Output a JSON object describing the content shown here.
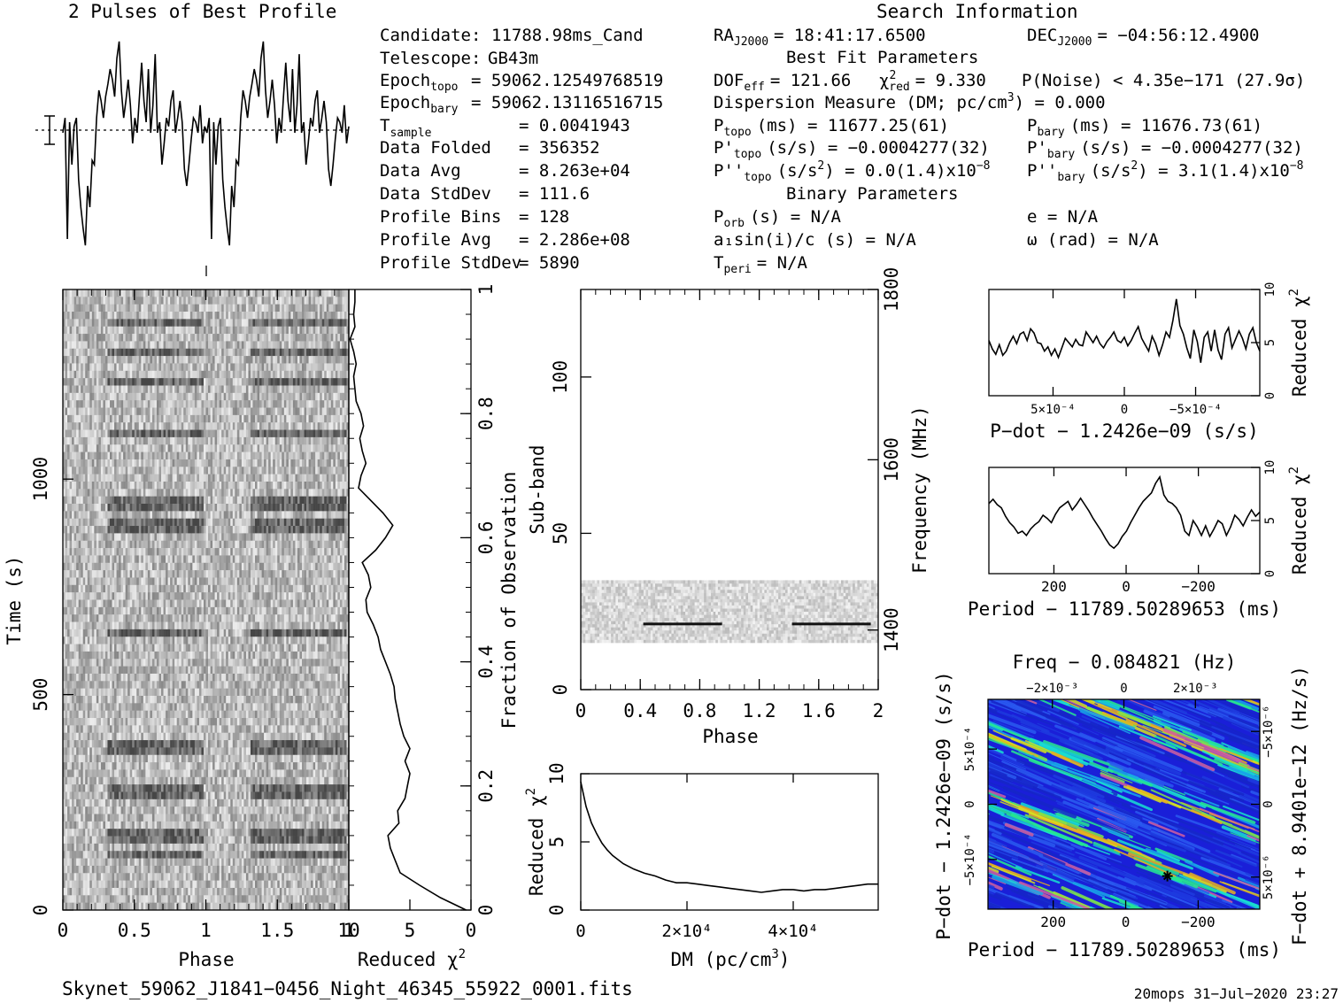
{
  "title": "2 Pulses of Best Profile",
  "search_info_title": "Search Information",
  "info_col1": [
    {
      "label": "Candidate:",
      "value": "11788.98ms_Cand"
    },
    {
      "label": "Telescope:",
      "value": "GB43m"
    },
    {
      "label": "Epoch",
      "sub": "topo",
      "value": "= 59062.12549768519"
    },
    {
      "label": "Epoch",
      "sub": "bary",
      "value": "= 59062.13116516715"
    },
    {
      "label": "T",
      "sub": "sample",
      "value": "=  0.0041943"
    },
    {
      "label": "Data Folded",
      "value": "=  356352"
    },
    {
      "label": "Data Avg",
      "value": "=  8.263e+04"
    },
    {
      "label": "Data StdDev",
      "value": "=  111.6"
    },
    {
      "label": "Profile Bins",
      "value": "=  128"
    },
    {
      "label": "Profile Avg",
      "value": "=  2.286e+08"
    },
    {
      "label": "Profile StdDev",
      "value": "=  5890"
    }
  ],
  "info_col2": {
    "ra": "= 18:41:17.6500",
    "dec": "= −04:56:12.4900",
    "best_fit_title": "Best Fit Parameters",
    "dof": "= 121.66",
    "chi2red": "= 9.330",
    "pnoise": "P(Noise) < 4.35e−171  (27.9σ)",
    "dm_line": "Dispersion Measure (DM; pc/cm",
    "dm_value": ") = 0.000",
    "ptopo": "(ms) =  11677.25(61)",
    "pbary": "(ms) =  11676.73(61)",
    "pdtopo": "(s/s) = −0.0004277(32)",
    "pdbary": "(s/s) = −0.0004277(32)",
    "pddtopo": "= 0.0(1.4)x10",
    "pddbary": "=  3.1(1.4)x10",
    "binary_title": "Binary Parameters",
    "porb": "(s) = N/A",
    "a1sini": "a₁sin(i)/c (s) = N/A",
    "tperi": "= N/A",
    "ecc": "e = N/A",
    "omega": "ω (rad) = N/A"
  },
  "footer_left": "Skynet_59062_J1841−0456_Night_46345_55922_0001.fits",
  "footer_right": "20mops 31−Jul−2020 23:27",
  "colors": {
    "ink": "#000000",
    "greyscale_dark": "#1a1a1a",
    "map_low": "#1a1fd8",
    "map_mid": "#18e0d0",
    "map_high": "#e8e020"
  },
  "chart_data": [
    {
      "id": "pulse_profile",
      "type": "line",
      "title": "2 Pulses of Best Profile",
      "x_range": [
        0,
        2
      ],
      "y": [
        0.55,
        0.62,
        0.05,
        0.6,
        0.4,
        0.58,
        0.62,
        0.33,
        0.2,
        0.1,
        0.02,
        0.3,
        0.2,
        0.42,
        0.4,
        0.62,
        0.75,
        0.7,
        0.62,
        0.72,
        0.78,
        0.85,
        0.8,
        0.72,
        0.9,
        0.98,
        0.75,
        0.62,
        0.7,
        0.8,
        0.68,
        0.5,
        0.62,
        0.55,
        0.72,
        0.88,
        0.7,
        0.6,
        0.85,
        0.55,
        0.68,
        0.92,
        0.55,
        0.6,
        0.4,
        0.5,
        0.62,
        0.58,
        0.7,
        0.75,
        0.55,
        0.62,
        0.7,
        0.6,
        0.38,
        0.3,
        0.4,
        0.52,
        0.62,
        0.6,
        0.55,
        0.68,
        0.5,
        0.58,
        0.55,
        0.62,
        0.05,
        0.6,
        0.4,
        0.58,
        0.62,
        0.33,
        0.2,
        0.1,
        0.02,
        0.3,
        0.2,
        0.42,
        0.4,
        0.62,
        0.75,
        0.7,
        0.62,
        0.72,
        0.78,
        0.85,
        0.8,
        0.72,
        0.9,
        0.98,
        0.75,
        0.62,
        0.7,
        0.8,
        0.68,
        0.5,
        0.62,
        0.55,
        0.72,
        0.88,
        0.7,
        0.6,
        0.85,
        0.55,
        0.68,
        0.92,
        0.55,
        0.6,
        0.4,
        0.5,
        0.62,
        0.58,
        0.7,
        0.75,
        0.55,
        0.62,
        0.7,
        0.6,
        0.38,
        0.3,
        0.4,
        0.52,
        0.62,
        0.6,
        0.55,
        0.68,
        0.5,
        0.58
      ]
    },
    {
      "id": "time_phase",
      "type": "heatmap",
      "xlabel": "Phase",
      "ylabel": "Time (s)",
      "x_ticks": [
        "0",
        "0.5",
        "1",
        "1.5"
      ],
      "x_tick_values": [
        0,
        0.5,
        1,
        1.5
      ],
      "y_ticks": [
        "0",
        "500",
        "1000"
      ],
      "y_tick_values": [
        0,
        500,
        1000
      ],
      "x_range": [
        0,
        2
      ],
      "y_range": [
        0,
        1440
      ],
      "dark_rows_fraction": [
        0.09,
        0.12,
        0.19,
        0.26,
        0.45,
        0.62,
        0.655,
        0.66,
        0.77,
        0.85,
        0.9,
        0.95
      ]
    },
    {
      "id": "time_chi2",
      "type": "line",
      "xlabel": "Reduced χ²",
      "ylabel": "Fraction of Observation",
      "x_ticks": [
        "10",
        "5",
        "0"
      ],
      "x_tick_values": [
        10,
        5,
        0
      ],
      "y_ticks": [
        "0",
        "0.2",
        "0.4",
        "0.6",
        "0.8",
        "1"
      ],
      "y_tick_values": [
        0,
        0.2,
        0.4,
        0.6,
        0.8,
        1
      ],
      "frac": [
        0,
        0.02,
        0.04,
        0.06,
        0.08,
        0.1,
        0.12,
        0.14,
        0.16,
        0.18,
        0.2,
        0.22,
        0.24,
        0.26,
        0.28,
        0.3,
        0.32,
        0.34,
        0.36,
        0.38,
        0.4,
        0.42,
        0.44,
        0.46,
        0.48,
        0.5,
        0.52,
        0.54,
        0.56,
        0.58,
        0.6,
        0.62,
        0.64,
        0.66,
        0.68,
        0.7,
        0.72,
        0.74,
        0.76,
        0.78,
        0.8,
        0.82,
        0.84,
        0.86,
        0.88,
        0.9,
        0.92,
        0.94,
        0.96,
        0.98,
        1
      ],
      "chi2": [
        0.4,
        2.5,
        4.2,
        5.8,
        6.2,
        6.6,
        6.8,
        5.9,
        6.0,
        5.4,
        5.2,
        5.0,
        5.4,
        5.0,
        5.5,
        5.8,
        6.0,
        6.2,
        6.3,
        6.6,
        7.0,
        7.4,
        7.6,
        8.0,
        8.5,
        8.6,
        8.2,
        8.4,
        8.9,
        7.8,
        7.0,
        6.4,
        7.2,
        8.2,
        9.2,
        9.0,
        8.6,
        8.9,
        9.1,
        8.8,
        9.0,
        9.4,
        9.5,
        9.6,
        9.4,
        9.6,
        9.9,
        9.5,
        9.6,
        9.5,
        9.5
      ]
    },
    {
      "id": "subband_phase",
      "type": "heatmap",
      "xlabel": "Phase",
      "ylabel": "Sub-band",
      "y2label": "Frequency (MHz)",
      "x_ticks": [
        "0",
        "0.4",
        "0.8",
        "1.2",
        "1.6",
        "2"
      ],
      "x_tick_values": [
        0,
        0.4,
        0.8,
        1.2,
        1.6,
        2
      ],
      "y_ticks": [
        "0",
        "50",
        "100"
      ],
      "y_tick_values": [
        0,
        50,
        100
      ],
      "y2_ticks": [
        "1400",
        "1600",
        "1800"
      ],
      "y2_tick_values": [
        1400,
        1600,
        1800
      ],
      "y_range": [
        0,
        128
      ],
      "y2_range": [
        1330,
        1800
      ],
      "band_range": [
        15,
        35
      ],
      "bright_line": {
        "subband": 21,
        "phase_ranges": [
          [
            0.42,
            0.95
          ],
          [
            1.42,
            1.95
          ]
        ]
      }
    },
    {
      "id": "dm_chi2",
      "type": "line",
      "xlabel": "DM (pc/cm³)",
      "ylabel": "Reduced χ²",
      "x_ticks": [
        "0",
        "2×10⁴",
        "4×10⁴"
      ],
      "x_tick_values": [
        0,
        20000,
        40000
      ],
      "y_ticks": [
        "0",
        "5",
        "10"
      ],
      "y_tick_values": [
        0,
        5,
        10
      ],
      "x_range": [
        0,
        56000
      ],
      "y_range": [
        0,
        10
      ],
      "x": [
        0,
        1000,
        2000,
        3000,
        4000,
        5000,
        6000,
        7000,
        8000,
        9000,
        10000,
        12000,
        14000,
        16000,
        18000,
        20000,
        22000,
        24000,
        26000,
        28000,
        30000,
        32000,
        34000,
        36000,
        38000,
        40000,
        42000,
        44000,
        46000,
        48000,
        50000,
        52000,
        54000,
        56000
      ],
      "y": [
        9.4,
        7.6,
        6.4,
        5.6,
        4.9,
        4.4,
        4.0,
        3.7,
        3.4,
        3.2,
        3.0,
        2.7,
        2.5,
        2.2,
        2.0,
        2.0,
        1.9,
        1.8,
        1.7,
        1.6,
        1.5,
        1.4,
        1.3,
        1.4,
        1.5,
        1.5,
        1.4,
        1.5,
        1.5,
        1.6,
        1.7,
        1.8,
        1.9,
        1.9
      ]
    },
    {
      "id": "pdot_chi2",
      "type": "line",
      "xlabel": "P−dot − 1.2426e−09 (s/s)",
      "ylabel": "Reduced χ²",
      "x_ticks": [
        "5×10⁻⁴",
        "0",
        "−5×10⁻⁴"
      ],
      "x_tick_values": [
        0.0005,
        0,
        -0.0005
      ],
      "y_ticks": [
        "0",
        "5",
        "10"
      ],
      "y_tick_values": [
        0,
        5,
        10
      ],
      "x_range": [
        0.00095,
        -0.00095
      ],
      "y_range": [
        0,
        10
      ],
      "y": [
        5.2,
        4.4,
        3.9,
        4.8,
        3.8,
        4.2,
        5.0,
        5.6,
        4.9,
        5.8,
        6.0,
        5.2,
        6.3,
        5.9,
        5.0,
        4.9,
        4.2,
        4.6,
        3.8,
        4.4,
        3.6,
        4.5,
        5.4,
        5.0,
        4.6,
        5.3,
        4.8,
        4.7,
        6.0,
        5.5,
        5.0,
        5.6,
        4.9,
        4.5,
        5.1,
        5.5,
        6.0,
        5.2,
        5.0,
        5.5,
        4.7,
        5.2,
        5.9,
        6.5,
        5.4,
        4.8,
        4.2,
        5.6,
        4.9,
        3.8,
        4.8,
        6.0,
        5.5,
        7.1,
        9.1,
        6.6,
        5.8,
        4.5,
        3.5,
        6.2,
        5.1,
        3.1,
        5.5,
        6.0,
        4.2,
        6.2,
        4.3,
        3.4,
        5.8,
        6.4,
        4.5,
        5.3,
        6.1,
        5.4,
        4.4,
        5.8,
        6.4,
        5.0,
        4.2
      ]
    },
    {
      "id": "period_chi2",
      "type": "line",
      "xlabel": "Period − 11789.50289653 (ms)",
      "ylabel": "Reduced χ²",
      "x_ticks": [
        "200",
        "0",
        "−200"
      ],
      "x_tick_values": [
        200,
        0,
        -200
      ],
      "y_ticks": [
        "0",
        "5",
        "10"
      ],
      "y_tick_values": [
        0,
        5,
        10
      ],
      "x_range": [
        380,
        -370
      ],
      "y_range": [
        0,
        10
      ],
      "y": [
        6.6,
        7.0,
        6.5,
        6.2,
        5.4,
        4.8,
        4.4,
        3.8,
        4.0,
        3.6,
        4.2,
        4.6,
        4.9,
        5.5,
        5.2,
        4.8,
        5.6,
        6.2,
        6.5,
        6.8,
        6.0,
        6.5,
        7.1,
        6.5,
        5.9,
        5.2,
        4.6,
        4.0,
        3.3,
        2.7,
        2.4,
        2.8,
        3.5,
        4.0,
        4.8,
        5.5,
        6.2,
        6.8,
        7.2,
        7.6,
        8.5,
        9.1,
        7.4,
        6.8,
        6.6,
        6.2,
        5.5,
        4.0,
        3.6,
        5.0,
        4.4,
        3.6,
        4.5,
        3.5,
        4.2,
        5.0,
        4.7,
        3.6,
        4.4,
        5.5,
        5.1,
        4.5,
        5.3,
        6.0,
        5.4,
        5.8
      ]
    },
    {
      "id": "ppdot_map",
      "type": "heatmap",
      "title": "Freq − 0.084821 (Hz)",
      "xlabel": "Period − 11789.50289653 (ms)",
      "ylabel": "P−dot − 1.2426e−09 (s/s)",
      "y2label": "F−dot + 8.9401e−12 (Hz/s)",
      "x_ticks": [
        "200",
        "0",
        "−200"
      ],
      "x_tick_values": [
        200,
        0,
        -200
      ],
      "top_ticks": [
        "−2×10⁻³",
        "0",
        "2×10⁻³"
      ],
      "top_tick_values": [
        -0.002,
        0,
        0.002
      ],
      "y_ticks": [
        "5×10⁻⁴",
        "0",
        "−5×10⁻⁴"
      ],
      "y_tick_values": [
        0.0005,
        0,
        -0.0005
      ],
      "y2_ticks": [
        "−5×10⁻⁶",
        "0",
        "5×10⁻⁶"
      ],
      "y2_tick_values": [
        -5e-06,
        0,
        5e-06
      ],
      "x_range": [
        380,
        -370
      ],
      "y_range": [
        0.00095,
        -0.00095
      ],
      "best": {
        "x": -115,
        "y": -0.00065
      }
    }
  ]
}
